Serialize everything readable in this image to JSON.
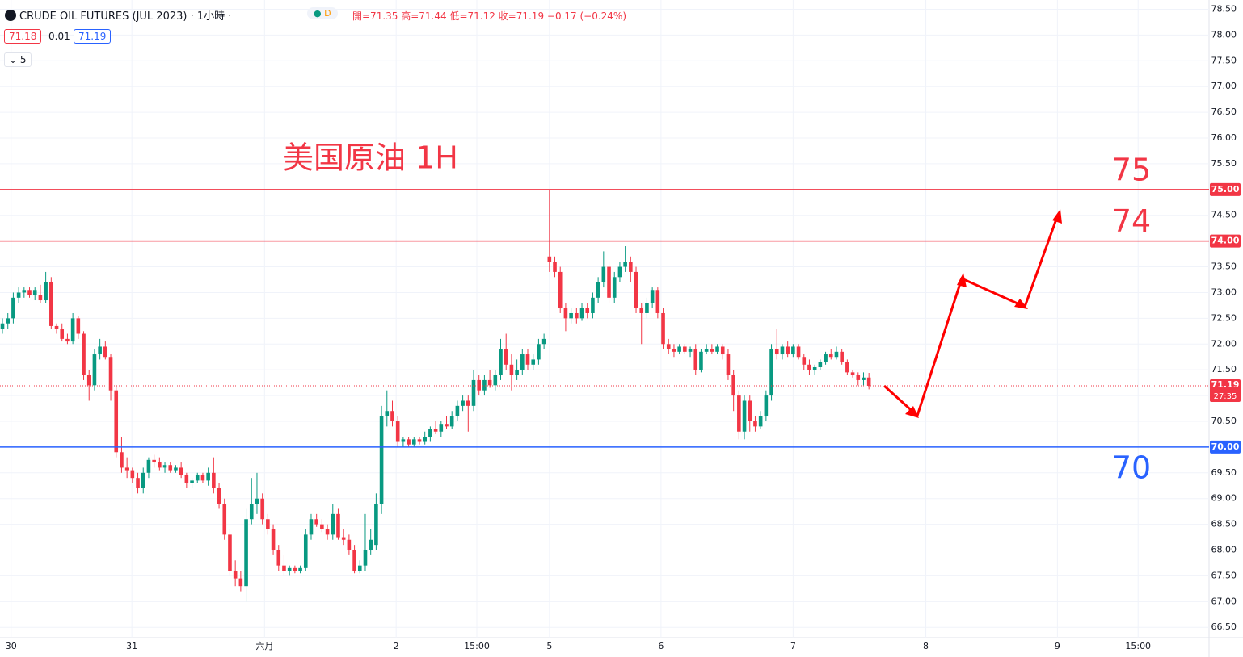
{
  "chart_data": {
    "type": "candlestick",
    "title": "CRUDE OIL FUTURES (JUL 2023) · 1小時 ·",
    "badge": "D",
    "ohlc_text": "開=71.35 高=71.44 低=71.12 收=71.19 −0.17 (−0.24%)",
    "bid": {
      "value": 71.18,
      "label": "71.18"
    },
    "spread": "0.01",
    "ask": {
      "value": 71.19,
      "label": "71.19"
    },
    "indicators": "5",
    "annotation": "美国原油 1H",
    "up_color": "#089981",
    "down_color": "#f23645",
    "grid": true,
    "ylim": [
      66.3,
      78.68
    ],
    "xlim": [
      -0.45,
      222.8
    ],
    "yticks": [
      {
        "value": 66.5,
        "label": "66.50"
      },
      {
        "value": 67,
        "label": "67.00"
      },
      {
        "value": 67.5,
        "label": "67.50"
      },
      {
        "value": 68,
        "label": "68.00"
      },
      {
        "value": 68.5,
        "label": "68.50"
      },
      {
        "value": 69,
        "label": "69.00"
      },
      {
        "value": 69.5,
        "label": "69.50"
      },
      {
        "value": 70,
        "label": "70.00"
      },
      {
        "value": 70.5,
        "label": "70.50"
      },
      {
        "value": 71,
        "label": "71.00"
      },
      {
        "value": 71.5,
        "label": "71.50"
      },
      {
        "value": 72,
        "label": "72.00"
      },
      {
        "value": 72.5,
        "label": "72.50"
      },
      {
        "value": 73,
        "label": "73.00"
      },
      {
        "value": 73.5,
        "label": "73.50"
      },
      {
        "value": 74,
        "label": "74.00"
      },
      {
        "value": 74.5,
        "label": "74.50"
      },
      {
        "value": 75,
        "label": "75.00"
      },
      {
        "value": 75.5,
        "label": "75.50"
      },
      {
        "value": 76,
        "label": "76.00"
      },
      {
        "value": 76.5,
        "label": "76.50"
      },
      {
        "value": 77,
        "label": "77.00"
      },
      {
        "value": 77.5,
        "label": "77.50"
      },
      {
        "value": 78,
        "label": "78.00"
      },
      {
        "value": 78.5,
        "label": "78.50"
      }
    ],
    "xticks": [
      {
        "value": 1.6,
        "label": "30"
      },
      {
        "value": 23.9,
        "label": "31"
      },
      {
        "value": 48.4,
        "label": "六月"
      },
      {
        "value": 72.7,
        "label": "2"
      },
      {
        "value": 87.6,
        "label": "15:00"
      },
      {
        "value": 101,
        "label": "5"
      },
      {
        "value": 121.6,
        "label": "6"
      },
      {
        "value": 146,
        "label": "7"
      },
      {
        "value": 170.5,
        "label": "8"
      },
      {
        "value": 194.8,
        "label": "9"
      },
      {
        "value": 209.7,
        "label": "15:00"
      }
    ],
    "levels": [
      {
        "value": 75,
        "label": "75.00",
        "name": "75",
        "color": "#f23645"
      },
      {
        "value": 74,
        "label": "74.00",
        "name": "74",
        "color": "#f23645"
      },
      {
        "value": 70,
        "label": "70.00",
        "name": "70",
        "color": "#2962ff"
      }
    ],
    "last": {
      "value": 71.19,
      "label": "71.19",
      "countdown": "27:35"
    },
    "ohlc": [
      [
        72.3,
        72.5,
        72.2,
        72.4
      ],
      [
        72.4,
        72.6,
        72.3,
        72.5
      ],
      [
        72.5,
        73.0,
        72.4,
        72.9
      ],
      [
        72.9,
        73.1,
        72.8,
        73.0
      ],
      [
        73.0,
        73.1,
        72.9,
        73.05
      ],
      [
        73.05,
        73.1,
        72.9,
        72.95
      ],
      [
        72.95,
        73.1,
        72.85,
        73.05
      ],
      [
        72.95,
        73.15,
        72.8,
        72.85
      ],
      [
        72.85,
        73.4,
        72.8,
        73.2
      ],
      [
        73.2,
        73.3,
        72.3,
        72.35
      ],
      [
        72.35,
        72.4,
        72.2,
        72.3
      ],
      [
        72.3,
        72.4,
        72.05,
        72.1
      ],
      [
        72.1,
        72.2,
        72.0,
        72.05
      ],
      [
        72.05,
        72.6,
        72.0,
        72.5
      ],
      [
        72.5,
        72.55,
        72.1,
        72.2
      ],
      [
        72.2,
        72.25,
        71.3,
        71.4
      ],
      [
        71.4,
        71.5,
        70.9,
        71.2
      ],
      [
        71.2,
        71.9,
        71.1,
        71.8
      ],
      [
        71.8,
        72.1,
        71.7,
        71.95
      ],
      [
        71.95,
        72.05,
        71.7,
        71.75
      ],
      [
        71.75,
        71.8,
        70.9,
        71.1
      ],
      [
        71.1,
        71.2,
        69.8,
        69.9
      ],
      [
        69.9,
        70.2,
        69.5,
        69.6
      ],
      [
        69.6,
        69.8,
        69.4,
        69.55
      ],
      [
        69.55,
        69.6,
        69.3,
        69.4
      ],
      [
        69.4,
        69.5,
        69.1,
        69.2
      ],
      [
        69.2,
        69.6,
        69.1,
        69.5
      ],
      [
        69.5,
        69.8,
        69.4,
        69.75
      ],
      [
        69.75,
        69.85,
        69.6,
        69.7
      ],
      [
        69.7,
        69.8,
        69.55,
        69.6
      ],
      [
        69.6,
        69.7,
        69.5,
        69.65
      ],
      [
        69.65,
        69.7,
        69.5,
        69.55
      ],
      [
        69.55,
        69.65,
        69.5,
        69.6
      ],
      [
        69.6,
        69.7,
        69.4,
        69.45
      ],
      [
        69.45,
        69.5,
        69.2,
        69.3
      ],
      [
        69.3,
        69.4,
        69.2,
        69.35
      ],
      [
        69.35,
        69.5,
        69.3,
        69.45
      ],
      [
        69.45,
        69.5,
        69.3,
        69.35
      ],
      [
        69.35,
        69.6,
        69.25,
        69.5
      ],
      [
        69.5,
        69.8,
        69.1,
        69.2
      ],
      [
        69.2,
        69.3,
        68.8,
        68.9
      ],
      [
        68.9,
        69.0,
        68.2,
        68.3
      ],
      [
        68.3,
        68.4,
        67.5,
        67.6
      ],
      [
        67.6,
        67.8,
        67.3,
        67.45
      ],
      [
        67.45,
        67.6,
        67.2,
        67.3
      ],
      [
        67.3,
        68.8,
        67.0,
        68.6
      ],
      [
        68.6,
        69.4,
        68.5,
        68.9
      ],
      [
        68.9,
        69.5,
        68.7,
        69.0
      ],
      [
        69.0,
        69.1,
        68.5,
        68.6
      ],
      [
        68.6,
        68.7,
        68.3,
        68.4
      ],
      [
        68.4,
        68.5,
        67.9,
        68.0
      ],
      [
        68.0,
        68.1,
        67.6,
        67.7
      ],
      [
        67.7,
        67.9,
        67.5,
        67.6
      ],
      [
        67.6,
        67.7,
        67.5,
        67.65
      ],
      [
        67.65,
        67.7,
        67.55,
        67.6
      ],
      [
        67.6,
        67.7,
        67.55,
        67.65
      ],
      [
        67.65,
        68.4,
        67.6,
        68.3
      ],
      [
        68.3,
        68.7,
        68.2,
        68.6
      ],
      [
        68.6,
        68.7,
        68.45,
        68.5
      ],
      [
        68.5,
        68.6,
        68.35,
        68.4
      ],
      [
        68.4,
        68.5,
        68.2,
        68.3
      ],
      [
        68.3,
        68.9,
        68.2,
        68.7
      ],
      [
        68.7,
        68.8,
        68.2,
        68.25
      ],
      [
        68.25,
        68.4,
        68.1,
        68.2
      ],
      [
        68.2,
        68.3,
        67.9,
        68.0
      ],
      [
        68.0,
        68.1,
        67.55,
        67.6
      ],
      [
        67.6,
        67.8,
        67.55,
        67.7
      ],
      [
        67.7,
        68.7,
        67.6,
        68.0
      ],
      [
        68.0,
        68.4,
        67.9,
        68.2
      ],
      [
        68.1,
        69.1,
        68.0,
        68.9
      ],
      [
        68.9,
        70.8,
        68.7,
        70.6
      ],
      [
        70.6,
        71.1,
        70.4,
        70.7
      ],
      [
        70.7,
        70.9,
        70.4,
        70.5
      ],
      [
        70.5,
        70.6,
        70.0,
        70.1
      ],
      [
        70.1,
        70.2,
        70.0,
        70.15
      ],
      [
        70.15,
        70.2,
        70.0,
        70.05
      ],
      [
        70.05,
        70.2,
        70.0,
        70.15
      ],
      [
        70.15,
        70.2,
        70.05,
        70.1
      ],
      [
        70.1,
        70.3,
        70.05,
        70.2
      ],
      [
        70.2,
        70.4,
        70.1,
        70.35
      ],
      [
        70.35,
        70.5,
        70.25,
        70.3
      ],
      [
        70.3,
        70.5,
        70.2,
        70.45
      ],
      [
        70.45,
        70.6,
        70.35,
        70.4
      ],
      [
        70.4,
        70.7,
        70.35,
        70.6
      ],
      [
        70.6,
        70.9,
        70.5,
        70.8
      ],
      [
        70.8,
        71.0,
        70.7,
        70.9
      ],
      [
        70.9,
        71.0,
        70.3,
        70.8
      ],
      [
        70.8,
        71.5,
        70.7,
        71.3
      ],
      [
        71.3,
        71.4,
        71.0,
        71.1
      ],
      [
        71.1,
        71.4,
        71.0,
        71.3
      ],
      [
        71.3,
        71.5,
        71.15,
        71.2
      ],
      [
        71.2,
        71.5,
        71.1,
        71.4
      ],
      [
        71.4,
        72.1,
        71.3,
        71.9
      ],
      [
        71.9,
        72.2,
        71.5,
        71.6
      ],
      [
        71.6,
        71.8,
        71.1,
        71.4
      ],
      [
        71.4,
        71.7,
        71.3,
        71.5
      ],
      [
        71.5,
        71.9,
        71.4,
        71.8
      ],
      [
        71.8,
        71.9,
        71.5,
        71.6
      ],
      [
        71.6,
        71.8,
        71.5,
        71.7
      ],
      [
        71.7,
        72.1,
        71.6,
        72.0
      ],
      [
        72.0,
        72.2,
        71.9,
        72.1
      ],
      [
        73.7,
        75.0,
        73.4,
        73.6
      ],
      [
        73.6,
        73.7,
        73.3,
        73.4
      ],
      [
        73.4,
        73.5,
        72.6,
        72.7
      ],
      [
        72.7,
        72.8,
        72.25,
        72.5
      ],
      [
        72.5,
        72.7,
        72.4,
        72.6
      ],
      [
        72.6,
        72.7,
        72.4,
        72.5
      ],
      [
        72.5,
        72.8,
        72.45,
        72.7
      ],
      [
        72.7,
        72.8,
        72.5,
        72.6
      ],
      [
        72.6,
        73.0,
        72.5,
        72.9
      ],
      [
        72.9,
        73.3,
        72.8,
        73.2
      ],
      [
        73.2,
        73.8,
        73.1,
        73.5
      ],
      [
        73.5,
        73.6,
        72.8,
        72.9
      ],
      [
        72.9,
        73.4,
        72.8,
        73.3
      ],
      [
        73.3,
        73.6,
        73.2,
        73.5
      ],
      [
        73.5,
        73.9,
        73.4,
        73.6
      ],
      [
        73.6,
        73.7,
        73.2,
        73.4
      ],
      [
        73.4,
        73.5,
        72.6,
        72.7
      ],
      [
        72.7,
        72.8,
        72.0,
        72.6
      ],
      [
        72.6,
        72.9,
        72.5,
        72.8
      ],
      [
        72.8,
        73.1,
        72.7,
        73.05
      ],
      [
        73.05,
        73.1,
        72.5,
        72.6
      ],
      [
        72.6,
        72.7,
        71.9,
        72.0
      ],
      [
        72.0,
        72.1,
        71.8,
        71.9
      ],
      [
        71.9,
        72.0,
        71.75,
        71.85
      ],
      [
        71.85,
        72.0,
        71.8,
        71.95
      ],
      [
        71.95,
        72.0,
        71.8,
        71.85
      ],
      [
        71.85,
        71.95,
        71.75,
        71.9
      ],
      [
        71.9,
        72.0,
        71.4,
        71.5
      ],
      [
        71.5,
        71.9,
        71.45,
        71.85
      ],
      [
        71.85,
        72.0,
        71.8,
        71.9
      ],
      [
        71.9,
        72.0,
        71.8,
        71.85
      ],
      [
        71.85,
        72.0,
        71.8,
        71.95
      ],
      [
        71.95,
        72.0,
        71.7,
        71.8
      ],
      [
        71.8,
        71.9,
        71.3,
        71.4
      ],
      [
        71.4,
        71.5,
        70.7,
        71.0
      ],
      [
        71.0,
        71.1,
        70.15,
        70.3
      ],
      [
        70.3,
        71.0,
        70.15,
        70.9
      ],
      [
        70.9,
        71.0,
        70.3,
        70.5
      ],
      [
        70.5,
        70.6,
        70.3,
        70.4
      ],
      [
        70.4,
        70.7,
        70.35,
        70.6
      ],
      [
        70.6,
        71.1,
        70.5,
        71.0
      ],
      [
        71.0,
        72.0,
        70.9,
        71.9
      ],
      [
        71.9,
        72.3,
        71.7,
        71.8
      ],
      [
        71.8,
        72.0,
        71.7,
        71.95
      ],
      [
        71.95,
        72.05,
        71.75,
        71.8
      ],
      [
        71.8,
        72.0,
        71.75,
        71.95
      ],
      [
        71.95,
        72.0,
        71.7,
        71.75
      ],
      [
        71.75,
        71.8,
        71.5,
        71.6
      ],
      [
        71.6,
        71.7,
        71.4,
        71.5
      ],
      [
        71.5,
        71.6,
        71.4,
        71.55
      ],
      [
        71.55,
        71.7,
        71.5,
        71.65
      ],
      [
        71.65,
        71.85,
        71.6,
        71.8
      ],
      [
        71.8,
        71.9,
        71.7,
        71.75
      ],
      [
        71.75,
        71.95,
        71.7,
        71.85
      ],
      [
        71.85,
        71.9,
        71.6,
        71.65
      ],
      [
        71.65,
        71.7,
        71.4,
        71.45
      ],
      [
        71.45,
        71.5,
        71.35,
        71.4
      ],
      [
        71.4,
        71.45,
        71.2,
        71.3
      ],
      [
        71.3,
        71.45,
        71.2,
        71.35
      ],
      [
        71.35,
        71.44,
        71.12,
        71.19
      ]
    ]
  }
}
